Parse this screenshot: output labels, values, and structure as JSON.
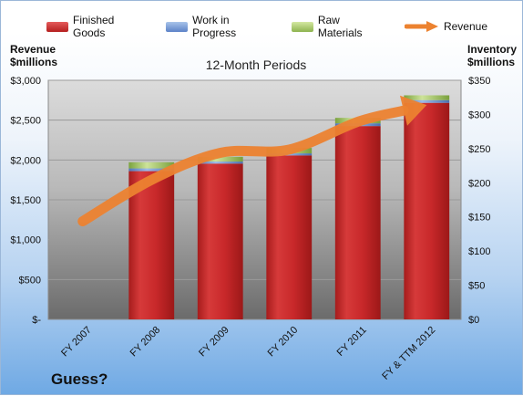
{
  "legend": {
    "finished": "Finished Goods",
    "wip": "Work in Progress",
    "raw": "Raw Materials",
    "revenue": "Revenue"
  },
  "left_axis_title": [
    "Revenue",
    "$millions"
  ],
  "right_axis_title": [
    "Inventory",
    "$millions"
  ],
  "footer_note": "Guess?",
  "colors": {
    "finished": "#c8282a",
    "wip": "#6f93d3",
    "raw": "#9bc25a",
    "revenue": "#ec8230",
    "plot_top": "#dcdcdc",
    "plot_bottom": "#6b6b6b"
  },
  "chart_data": {
    "type": "bar",
    "title": "12-Month Periods",
    "categories": [
      "FY 2007",
      "FY 2008",
      "FY 2009",
      "FY 2010",
      "FY 2011",
      "FY & TTM 2012"
    ],
    "stacked": true,
    "series": [
      {
        "name": "Finished Goods",
        "axis": "right",
        "values": [
          0,
          217,
          228,
          240,
          283,
          317
        ]
      },
      {
        "name": "Work in Progress",
        "axis": "right",
        "values": [
          0,
          4,
          3,
          3,
          4,
          4
        ]
      },
      {
        "name": "Raw Materials",
        "axis": "right",
        "values": [
          0,
          9,
          7,
          8,
          8,
          7
        ]
      },
      {
        "name": "Revenue",
        "type": "line",
        "axis": "left",
        "values": [
          1230,
          1750,
          2090,
          2130,
          2480,
          2690
        ]
      }
    ],
    "left_axis": {
      "min": 0,
      "max": 3000,
      "step": 500,
      "tick_labels": [
        "$-",
        "$500",
        "$1,000",
        "$1,500",
        "$2,000",
        "$2,500",
        "$3,000"
      ]
    },
    "right_axis": {
      "min": 0,
      "max": 350,
      "step": 50,
      "tick_labels": [
        "$0",
        "$50",
        "$100",
        "$150",
        "$200",
        "$250",
        "$300",
        "$350"
      ]
    },
    "legend_position": "top",
    "grid": true
  }
}
